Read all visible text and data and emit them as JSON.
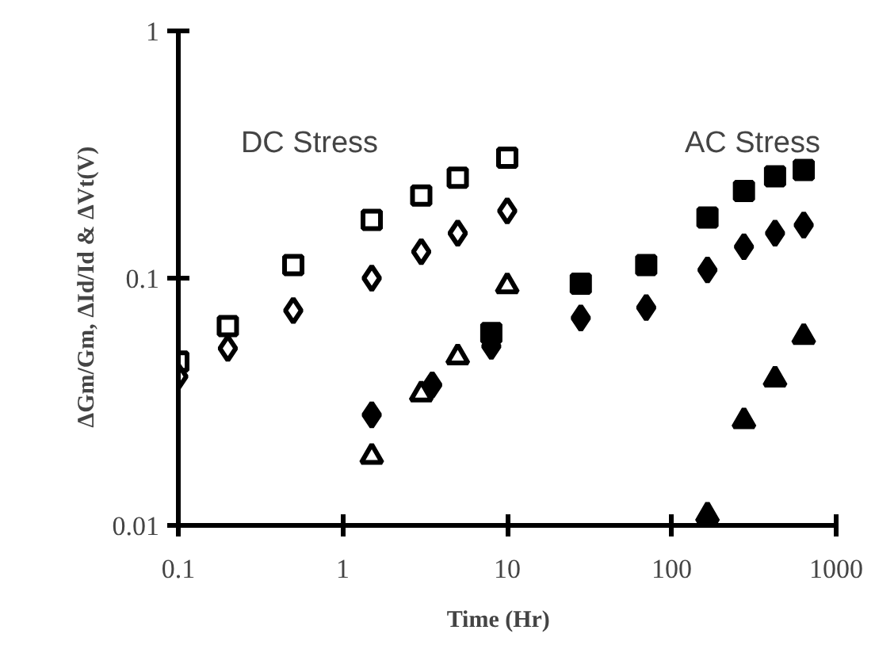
{
  "chart_data": {
    "type": "scatter",
    "xlabel": "Time    (Hr)",
    "ylabel": "ΔGm/Gm,  ΔId/Id  &  ΔVt(V)",
    "annotations": [
      "DC Stress",
      "AC Stress"
    ],
    "log": "xy",
    "xlim": [
      0.1,
      1000
    ],
    "ylim": [
      0.01,
      1
    ],
    "xticks": [
      0.1,
      1,
      10,
      100,
      1000
    ],
    "yticks": [
      0.01,
      0.1,
      1
    ],
    "grid": false,
    "series": [
      {
        "color": "#ffffff",
        "marker": "square",
        "x": [
          0.1,
          0.2,
          0.5,
          1.5,
          3,
          5,
          10
        ],
        "values": [
          0.046,
          0.064,
          0.113,
          0.172,
          0.216,
          0.255,
          0.307
        ]
      },
      {
        "color": "#ffffff",
        "marker": "diamond",
        "x": [
          0.1,
          0.2,
          0.5,
          1.5,
          3,
          5,
          10
        ],
        "values": [
          0.04,
          0.052,
          0.074,
          0.1,
          0.128,
          0.152,
          0.187
        ]
      },
      {
        "color": "#ffffff",
        "marker": "triangle",
        "x": [
          1.5,
          3,
          5,
          10
        ],
        "values": [
          0.019,
          0.034,
          0.048,
          0.093
        ]
      },
      {
        "color": "#000000",
        "marker": "square",
        "x": [
          8,
          28,
          70,
          165,
          275,
          425,
          635
        ],
        "values": [
          0.06,
          0.095,
          0.113,
          0.176,
          0.225,
          0.258,
          0.274
        ]
      },
      {
        "color": "#000000",
        "marker": "diamond",
        "x": [
          1.5,
          3.5,
          8,
          28,
          70,
          165,
          275,
          425,
          635
        ],
        "values": [
          0.028,
          0.037,
          0.053,
          0.069,
          0.076,
          0.108,
          0.134,
          0.152,
          0.164
        ]
      },
      {
        "color": "#000000",
        "marker": "triangle",
        "x": [
          165,
          275,
          425,
          635
        ],
        "values": [
          0.011,
          0.0265,
          0.039,
          0.058
        ]
      }
    ]
  }
}
